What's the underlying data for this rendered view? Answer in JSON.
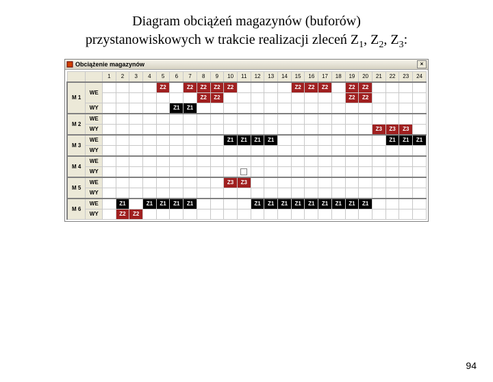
{
  "title_line1": "Diagram obciążeń magazynów (buforów)",
  "title_line2_prefix": "przystanowiskowych w trakcie realizacji zleceń Z",
  "title_subs": [
    "1",
    "2",
    "3"
  ],
  "window_title": "Obciążenie magazynów",
  "page_number": "94",
  "time_columns": 24,
  "machines": [
    "M 1",
    "M 2",
    "M 3",
    "M 4",
    "M 5",
    "M 6"
  ],
  "io_labels": [
    "WE",
    "WY"
  ],
  "colors": {
    "red": "#a02020",
    "black": "#000000",
    "grid": "#c8c8c8",
    "header_bg": "#ece9d8",
    "bg": "#ffffff"
  },
  "cells": [
    {
      "m": 0,
      "io": 0,
      "row": 0,
      "t": 5,
      "label": "Z2",
      "color": "red"
    },
    {
      "m": 0,
      "io": 0,
      "row": 0,
      "t": 7,
      "label": "Z2",
      "color": "red"
    },
    {
      "m": 0,
      "io": 0,
      "row": 0,
      "t": 8,
      "label": "Z2",
      "color": "red"
    },
    {
      "m": 0,
      "io": 0,
      "row": 0,
      "t": 9,
      "label": "Z2",
      "color": "red"
    },
    {
      "m": 0,
      "io": 0,
      "row": 0,
      "t": 10,
      "label": "Z2",
      "color": "red"
    },
    {
      "m": 0,
      "io": 0,
      "row": 0,
      "t": 15,
      "label": "Z2",
      "color": "red"
    },
    {
      "m": 0,
      "io": 0,
      "row": 0,
      "t": 16,
      "label": "Z2",
      "color": "red"
    },
    {
      "m": 0,
      "io": 0,
      "row": 0,
      "t": 17,
      "label": "Z2",
      "color": "red"
    },
    {
      "m": 0,
      "io": 0,
      "row": 0,
      "t": 19,
      "label": "Z2",
      "color": "red"
    },
    {
      "m": 0,
      "io": 0,
      "row": 0,
      "t": 20,
      "label": "Z2",
      "color": "red"
    },
    {
      "m": 0,
      "io": 0,
      "row": 1,
      "t": 8,
      "label": "Z2",
      "color": "red"
    },
    {
      "m": 0,
      "io": 0,
      "row": 1,
      "t": 9,
      "label": "Z2",
      "color": "red"
    },
    {
      "m": 0,
      "io": 0,
      "row": 1,
      "t": 19,
      "label": "Z2",
      "color": "red"
    },
    {
      "m": 0,
      "io": 0,
      "row": 1,
      "t": 20,
      "label": "Z2",
      "color": "red"
    },
    {
      "m": 0,
      "io": 1,
      "row": 0,
      "t": 6,
      "label": "Z1",
      "color": "black"
    },
    {
      "m": 0,
      "io": 1,
      "row": 0,
      "t": 7,
      "label": "Z1",
      "color": "black"
    },
    {
      "m": 1,
      "io": 1,
      "row": 0,
      "t": 21,
      "label": "Z3",
      "color": "red"
    },
    {
      "m": 1,
      "io": 1,
      "row": 0,
      "t": 22,
      "label": "Z3",
      "color": "red"
    },
    {
      "m": 1,
      "io": 1,
      "row": 0,
      "t": 23,
      "label": "Z3",
      "color": "red"
    },
    {
      "m": 2,
      "io": 0,
      "row": 0,
      "t": 10,
      "label": "Z1",
      "color": "black"
    },
    {
      "m": 2,
      "io": 0,
      "row": 0,
      "t": 11,
      "label": "Z1",
      "color": "black"
    },
    {
      "m": 2,
      "io": 0,
      "row": 0,
      "t": 12,
      "label": "Z1",
      "color": "black"
    },
    {
      "m": 2,
      "io": 0,
      "row": 0,
      "t": 13,
      "label": "Z1",
      "color": "black"
    },
    {
      "m": 2,
      "io": 0,
      "row": 0,
      "t": 22,
      "label": "Z1",
      "color": "black"
    },
    {
      "m": 2,
      "io": 0,
      "row": 0,
      "t": 23,
      "label": "Z1",
      "color": "black"
    },
    {
      "m": 2,
      "io": 0,
      "row": 0,
      "t": 24,
      "label": "Z1",
      "color": "black"
    },
    {
      "m": 4,
      "io": 0,
      "row": 0,
      "t": 10,
      "label": "Z3",
      "color": "red"
    },
    {
      "m": 4,
      "io": 0,
      "row": 0,
      "t": 11,
      "label": "Z3",
      "color": "red"
    },
    {
      "m": 5,
      "io": 0,
      "row": 0,
      "t": 2,
      "label": "Z1",
      "color": "black"
    },
    {
      "m": 5,
      "io": 0,
      "row": 0,
      "t": 4,
      "label": "Z1",
      "color": "black"
    },
    {
      "m": 5,
      "io": 0,
      "row": 0,
      "t": 5,
      "label": "Z1",
      "color": "black"
    },
    {
      "m": 5,
      "io": 0,
      "row": 0,
      "t": 6,
      "label": "Z1",
      "color": "black"
    },
    {
      "m": 5,
      "io": 0,
      "row": 0,
      "t": 7,
      "label": "Z1",
      "color": "black"
    },
    {
      "m": 5,
      "io": 0,
      "row": 0,
      "t": 12,
      "label": "Z1",
      "color": "black"
    },
    {
      "m": 5,
      "io": 0,
      "row": 0,
      "t": 13,
      "label": "Z1",
      "color": "black"
    },
    {
      "m": 5,
      "io": 0,
      "row": 0,
      "t": 14,
      "label": "Z1",
      "color": "black"
    },
    {
      "m": 5,
      "io": 0,
      "row": 0,
      "t": 15,
      "label": "Z1",
      "color": "black"
    },
    {
      "m": 5,
      "io": 0,
      "row": 0,
      "t": 16,
      "label": "Z1",
      "color": "black"
    },
    {
      "m": 5,
      "io": 0,
      "row": 0,
      "t": 17,
      "label": "Z1",
      "color": "black"
    },
    {
      "m": 5,
      "io": 0,
      "row": 0,
      "t": 18,
      "label": "Z1",
      "color": "black"
    },
    {
      "m": 5,
      "io": 0,
      "row": 0,
      "t": 19,
      "label": "Z1",
      "color": "black"
    },
    {
      "m": 5,
      "io": 0,
      "row": 0,
      "t": 20,
      "label": "Z1",
      "color": "black"
    },
    {
      "m": 5,
      "io": 1,
      "row": 0,
      "t": 2,
      "label": "Z2",
      "color": "red"
    },
    {
      "m": 5,
      "io": 1,
      "row": 0,
      "t": 3,
      "label": "Z2",
      "color": "red"
    }
  ],
  "row_layout": [
    {
      "m": 0,
      "io": 0,
      "rows": 2
    },
    {
      "m": 0,
      "io": 1,
      "rows": 1
    },
    {
      "m": 1,
      "io": 0,
      "rows": 1
    },
    {
      "m": 1,
      "io": 1,
      "rows": 1
    },
    {
      "m": 2,
      "io": 0,
      "rows": 1
    },
    {
      "m": 2,
      "io": 1,
      "rows": 1
    },
    {
      "m": 3,
      "io": 0,
      "rows": 1
    },
    {
      "m": 3,
      "io": 1,
      "rows": 1
    },
    {
      "m": 4,
      "io": 0,
      "rows": 1
    },
    {
      "m": 4,
      "io": 1,
      "rows": 1
    },
    {
      "m": 5,
      "io": 0,
      "rows": 1
    },
    {
      "m": 5,
      "io": 1,
      "rows": 1
    }
  ],
  "midmark": {
    "m": 3,
    "io": 1,
    "t": 11
  }
}
